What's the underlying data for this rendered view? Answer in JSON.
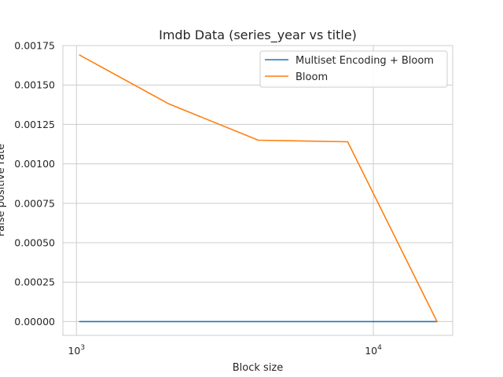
{
  "chart_data": {
    "type": "line",
    "title": "Imdb Data (series_year vs title)",
    "xlabel": "Block size",
    "ylabel": "False positive rate",
    "xscale": "log",
    "xlim": [
      900,
      18500
    ],
    "ylim": [
      -8.75e-05,
      0.00175
    ],
    "x_ticks": [
      {
        "value": 1000,
        "base": "10",
        "exp": "3"
      },
      {
        "value": 10000,
        "base": "10",
        "exp": "4"
      }
    ],
    "y_ticks": [
      "0.00000",
      "0.00025",
      "0.00050",
      "0.00075",
      "0.00100",
      "0.00125",
      "0.00150",
      "0.00175"
    ],
    "y_tick_values": [
      0,
      0.00025,
      0.0005,
      0.00075,
      0.001,
      0.00125,
      0.0015,
      0.00175
    ],
    "grid": true,
    "legend_position": "top-right",
    "series": [
      {
        "name": "Multiset Encoding + Bloom",
        "color": "#1f77b4",
        "x": [
          1024,
          2048,
          4096,
          8192,
          16384
        ],
        "y": [
          0,
          0,
          0,
          0,
          0
        ]
      },
      {
        "name": "Bloom",
        "color": "#ff7f0e",
        "x": [
          1024,
          2048,
          4096,
          8192,
          16384
        ],
        "y": [
          0.00169,
          0.00138,
          0.00115,
          0.00114,
          0.0
        ]
      }
    ]
  }
}
